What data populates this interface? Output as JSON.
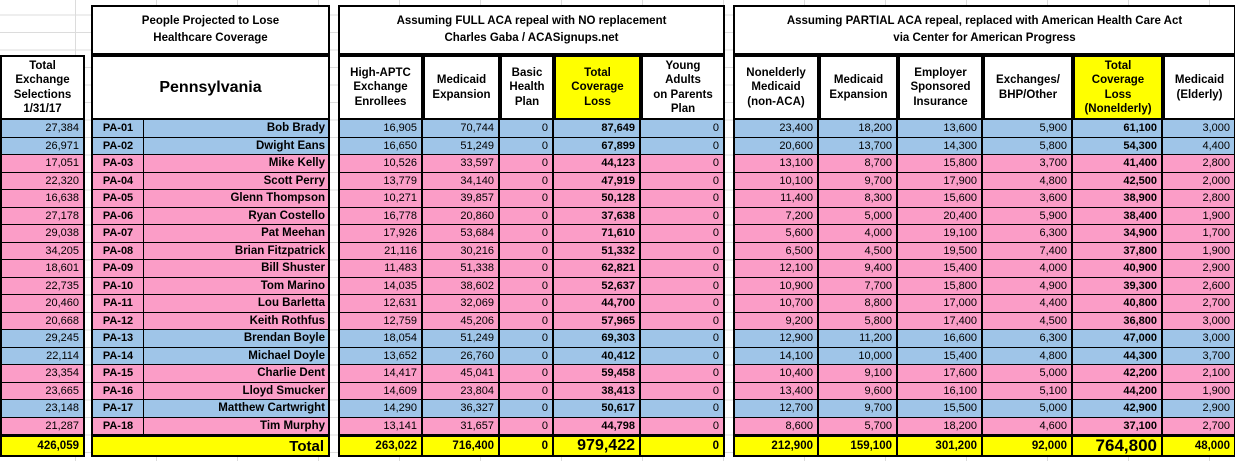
{
  "palette": {
    "democrat_row": "#9FC5E8",
    "republican_row": "#FB9DC7",
    "highlight": "#FFFF00",
    "border": "#000000",
    "gridline": "#DCDCDC"
  },
  "left_column": {
    "header": "Total\nExchange\nSelections\n1/31/17"
  },
  "section_state": {
    "title": "People Projected to Lose\nHealthcare Coverage",
    "subtitle": "Pennsylvania",
    "total_label": "Total"
  },
  "section_full_repeal": {
    "title": "Assuming FULL ACA repeal with NO replacement\nCharles Gaba / ACASignups.net",
    "columns": [
      "High-APTC\nExchange\nEnrollees",
      "Medicaid\nExpansion",
      "Basic\nHealth\nPlan",
      "Total\nCoverage\nLoss",
      "Young\nAdults\non Parents\nPlan"
    ]
  },
  "section_partial_repeal": {
    "title": "Assuming PARTIAL ACA repeal, replaced with American Health Care Act\nvia Center for American Progress",
    "columns": [
      "Nonelderly\nMedicaid\n(non-ACA)",
      "Medicaid\nExpansion",
      "Employer\nSponsored\nInsurance",
      "Exchanges/\nBHP/Other",
      "Total\nCoverage\nLoss\n(Nonelderly)",
      "Medicaid\n(Elderly)"
    ]
  },
  "rows": [
    {
      "district": "PA-01",
      "rep": "Bob Brady",
      "party_color": "blue",
      "exchange_selections": "27,384",
      "full": [
        "16,905",
        "70,744",
        "0",
        "87,649",
        "0"
      ],
      "partial": [
        "23,400",
        "18,200",
        "13,600",
        "5,900",
        "61,100",
        "3,000"
      ]
    },
    {
      "district": "PA-02",
      "rep": "Dwight Eans",
      "party_color": "blue",
      "exchange_selections": "26,971",
      "full": [
        "16,650",
        "51,249",
        "0",
        "67,899",
        "0"
      ],
      "partial": [
        "20,600",
        "13,700",
        "14,300",
        "5,800",
        "54,300",
        "4,400"
      ]
    },
    {
      "district": "PA-03",
      "rep": "Mike Kelly",
      "party_color": "pink",
      "exchange_selections": "17,051",
      "full": [
        "10,526",
        "33,597",
        "0",
        "44,123",
        "0"
      ],
      "partial": [
        "13,100",
        "8,700",
        "15,800",
        "3,700",
        "41,400",
        "2,800"
      ]
    },
    {
      "district": "PA-04",
      "rep": "Scott Perry",
      "party_color": "pink",
      "exchange_selections": "22,320",
      "full": [
        "13,779",
        "34,140",
        "0",
        "47,919",
        "0"
      ],
      "partial": [
        "10,100",
        "9,700",
        "17,900",
        "4,800",
        "42,500",
        "2,000"
      ]
    },
    {
      "district": "PA-05",
      "rep": "Glenn Thompson",
      "party_color": "pink",
      "exchange_selections": "16,638",
      "full": [
        "10,271",
        "39,857",
        "0",
        "50,128",
        "0"
      ],
      "partial": [
        "11,400",
        "8,300",
        "15,600",
        "3,600",
        "38,900",
        "2,800"
      ]
    },
    {
      "district": "PA-06",
      "rep": "Ryan Costello",
      "party_color": "pink",
      "exchange_selections": "27,178",
      "full": [
        "16,778",
        "20,860",
        "0",
        "37,638",
        "0"
      ],
      "partial": [
        "7,200",
        "5,000",
        "20,400",
        "5,900",
        "38,400",
        "1,900"
      ]
    },
    {
      "district": "PA-07",
      "rep": "Pat Meehan",
      "party_color": "pink",
      "exchange_selections": "29,038",
      "full": [
        "17,926",
        "53,684",
        "0",
        "71,610",
        "0"
      ],
      "partial": [
        "5,600",
        "4,000",
        "19,100",
        "6,300",
        "34,900",
        "1,700"
      ]
    },
    {
      "district": "PA-08",
      "rep": "Brian Fitzpatrick",
      "party_color": "pink",
      "exchange_selections": "34,205",
      "full": [
        "21,116",
        "30,216",
        "0",
        "51,332",
        "0"
      ],
      "partial": [
        "6,500",
        "4,500",
        "19,500",
        "7,400",
        "37,800",
        "1,900"
      ]
    },
    {
      "district": "PA-09",
      "rep": "Bill Shuster",
      "party_color": "pink",
      "exchange_selections": "18,601",
      "full": [
        "11,483",
        "51,338",
        "0",
        "62,821",
        "0"
      ],
      "partial": [
        "12,100",
        "9,400",
        "15,400",
        "4,000",
        "40,900",
        "2,900"
      ]
    },
    {
      "district": "PA-10",
      "rep": "Tom Marino",
      "party_color": "pink",
      "exchange_selections": "22,735",
      "full": [
        "14,035",
        "38,602",
        "0",
        "52,637",
        "0"
      ],
      "partial": [
        "10,900",
        "7,700",
        "15,800",
        "4,900",
        "39,300",
        "2,600"
      ]
    },
    {
      "district": "PA-11",
      "rep": "Lou Barletta",
      "party_color": "pink",
      "exchange_selections": "20,460",
      "full": [
        "12,631",
        "32,069",
        "0",
        "44,700",
        "0"
      ],
      "partial": [
        "10,700",
        "8,800",
        "17,000",
        "4,400",
        "40,800",
        "2,700"
      ]
    },
    {
      "district": "PA-12",
      "rep": "Keith Rothfus",
      "party_color": "pink",
      "exchange_selections": "20,668",
      "full": [
        "12,759",
        "45,206",
        "0",
        "57,965",
        "0"
      ],
      "partial": [
        "9,200",
        "5,800",
        "17,400",
        "4,500",
        "36,800",
        "3,000"
      ]
    },
    {
      "district": "PA-13",
      "rep": "Brendan Boyle",
      "party_color": "blue",
      "exchange_selections": "29,245",
      "full": [
        "18,054",
        "51,249",
        "0",
        "69,303",
        "0"
      ],
      "partial": [
        "12,900",
        "11,200",
        "16,600",
        "6,300",
        "47,000",
        "3,000"
      ]
    },
    {
      "district": "PA-14",
      "rep": "Michael Doyle",
      "party_color": "blue",
      "exchange_selections": "22,114",
      "full": [
        "13,652",
        "26,760",
        "0",
        "40,412",
        "0"
      ],
      "partial": [
        "14,100",
        "10,000",
        "15,400",
        "4,800",
        "44,300",
        "3,700"
      ]
    },
    {
      "district": "PA-15",
      "rep": "Charlie Dent",
      "party_color": "pink",
      "exchange_selections": "23,354",
      "full": [
        "14,417",
        "45,041",
        "0",
        "59,458",
        "0"
      ],
      "partial": [
        "10,400",
        "9,100",
        "17,600",
        "5,000",
        "42,200",
        "2,100"
      ]
    },
    {
      "district": "PA-16",
      "rep": "Lloyd Smucker",
      "party_color": "pink",
      "exchange_selections": "23,665",
      "full": [
        "14,609",
        "23,804",
        "0",
        "38,413",
        "0"
      ],
      "partial": [
        "13,400",
        "9,600",
        "16,100",
        "5,100",
        "44,200",
        "1,900"
      ]
    },
    {
      "district": "PA-17",
      "rep": "Matthew Cartwright",
      "party_color": "blue",
      "exchange_selections": "23,148",
      "full": [
        "14,290",
        "36,327",
        "0",
        "50,617",
        "0"
      ],
      "partial": [
        "12,700",
        "9,700",
        "15,500",
        "5,000",
        "42,900",
        "2,900"
      ]
    },
    {
      "district": "PA-18",
      "rep": "Tim Murphy",
      "party_color": "pink",
      "exchange_selections": "21,287",
      "full": [
        "13,141",
        "31,657",
        "0",
        "44,798",
        "0"
      ],
      "partial": [
        "8,600",
        "5,700",
        "18,200",
        "4,600",
        "37,100",
        "2,700"
      ]
    }
  ],
  "totals": {
    "exchange_selections": "426,059",
    "label": "Total",
    "full": [
      "263,022",
      "716,400",
      "0",
      "979,422",
      "0"
    ],
    "partial": [
      "212,900",
      "159,100",
      "301,200",
      "92,000",
      "764,800",
      "48,000"
    ]
  }
}
